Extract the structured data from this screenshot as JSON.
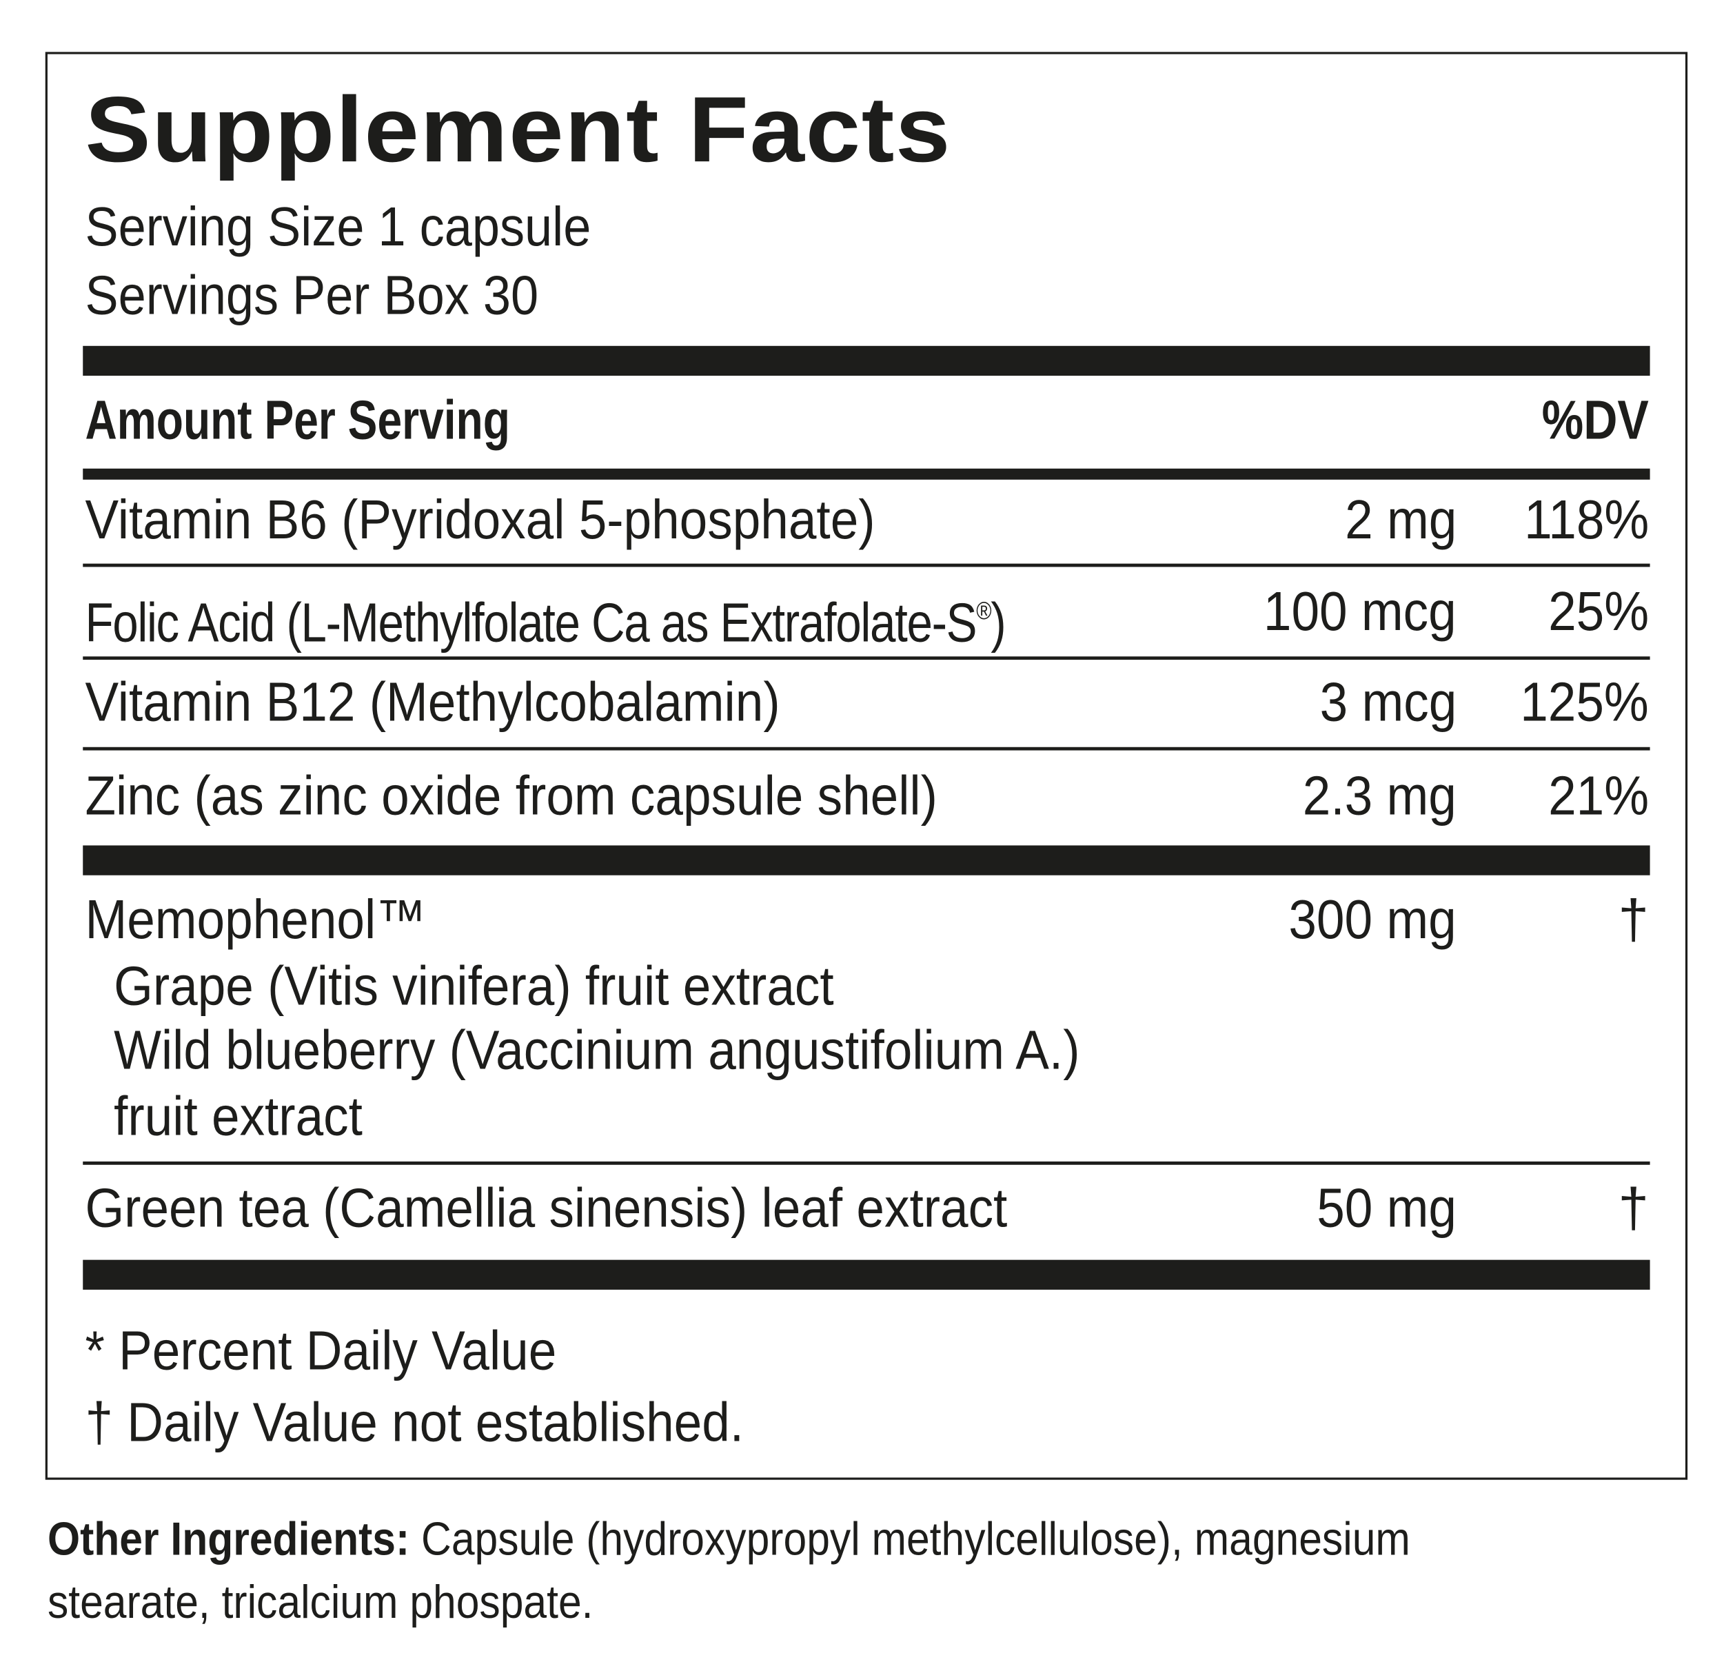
{
  "title": "Supplement Facts",
  "serving_size": "Serving Size 1 capsule",
  "servings_per": "Servings Per Box 30",
  "header": {
    "amount": "Amount Per Serving",
    "dv": "%DV"
  },
  "rows": [
    {
      "name": "Vitamin B6 (Pyridoxal 5-phosphate)",
      "amount": "2 mg",
      "dv": "118%"
    },
    {
      "name": "Folic Acid (L-Methylfolate Ca as Extrafolate-S",
      "mark": "®",
      "name_end": ")",
      "amount": "100 mcg",
      "dv": "25%"
    },
    {
      "name": "Vitamin B12 (Methylcobalamin)",
      "amount": "3 mcg",
      "dv": "125%"
    },
    {
      "name": "Zinc (as zinc oxide from capsule shell)",
      "amount": "2.3 mg",
      "dv": "21%"
    }
  ],
  "blend": {
    "name": "Memophenol™",
    "amount": "300 mg",
    "dv": "†",
    "sub": [
      "Grape (Vitis vinifera) fruit extract",
      "Wild blueberry (Vaccinium angustifolium A.)",
      "fruit extract"
    ]
  },
  "green_tea": {
    "name": "Green tea (Camellia sinensis) leaf extract",
    "amount": "50 mg",
    "dv": "†"
  },
  "footnotes": [
    "* Percent Daily Value",
    "† Daily Value not established."
  ],
  "other": {
    "label": "Other Ingredients:",
    "text": " Capsule (hydroxypropyl methylcellulose), magnesium",
    "text2": "stearate, tricalcium phospate."
  }
}
